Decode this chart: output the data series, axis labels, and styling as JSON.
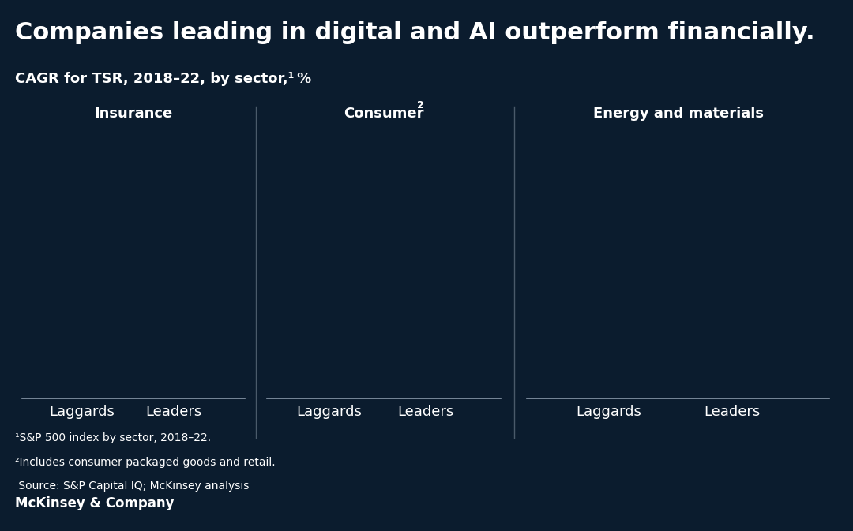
{
  "title": "Companies leading in digital and AI outperform financially.",
  "subtitle": "CAGR for TSR, 2018–22, by sector,¹ %",
  "background_color": "#0b1c2e",
  "text_color": "#ffffff",
  "divider_color": "#4a5a6a",
  "axis_line_color": "#8a9aaa",
  "sectors": [
    "Insurance",
    "Consumer²",
    "Energy and materials"
  ],
  "x_labels": [
    "Laggards",
    "Leaders"
  ],
  "footnote1": "¹S&P 500 index by sector, 2018–22.",
  "footnote2": "²Includes consumer packaged goods and retail.",
  "footnote3": " Source: S&P Capital IQ; McKinsey analysis",
  "footer": "McKinsey & Company",
  "title_fontsize": 22,
  "subtitle_fontsize": 13,
  "sector_fontsize": 13,
  "xlabel_fontsize": 13,
  "footnote_fontsize": 10,
  "footer_fontsize": 12
}
